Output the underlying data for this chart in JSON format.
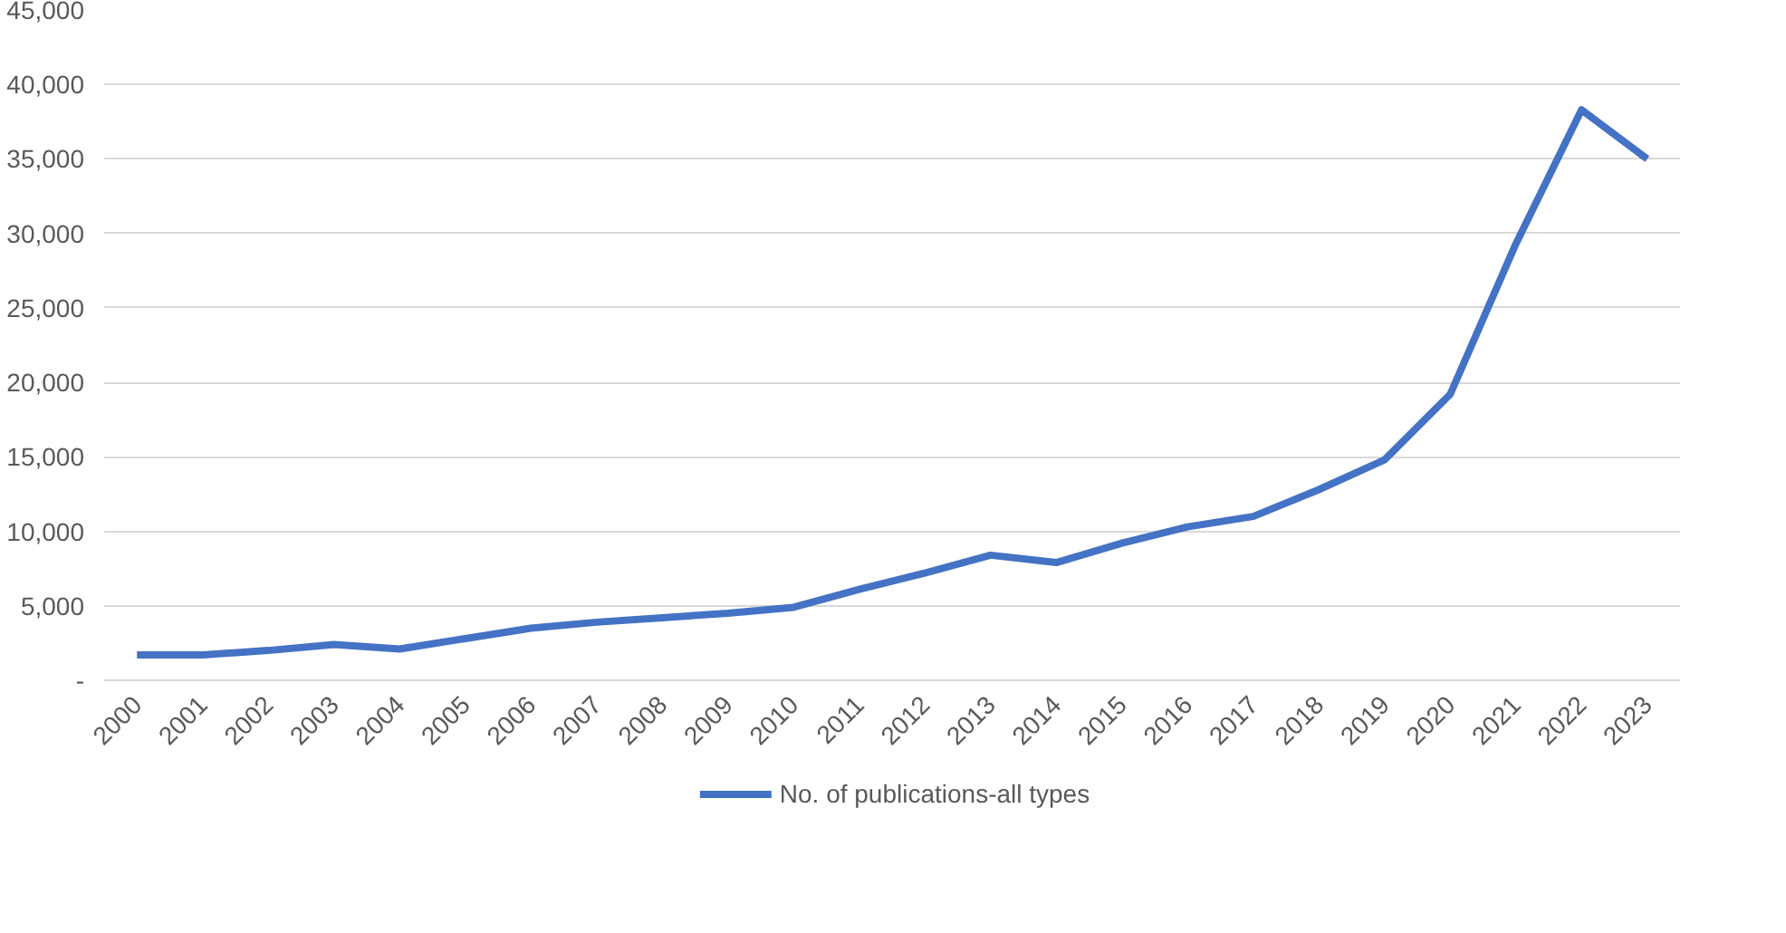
{
  "chart_data": {
    "type": "line",
    "categories": [
      "2000",
      "2001",
      "2002",
      "2003",
      "2004",
      "2005",
      "2006",
      "2007",
      "2008",
      "2009",
      "2010",
      "2011",
      "2012",
      "2013",
      "2014",
      "2015",
      "2016",
      "2017",
      "2018",
      "2019",
      "2020",
      "2021",
      "2022",
      "2023"
    ],
    "series": [
      {
        "name": "No. of publications-all types",
        "color": "#4472c4",
        "values": [
          1700,
          1700,
          2000,
          2400,
          2100,
          2800,
          3500,
          3900,
          4200,
          4500,
          4900,
          6100,
          7200,
          8400,
          7900,
          9200,
          10300,
          11000,
          12800,
          14800,
          19200,
          29300,
          38300,
          35000
        ]
      }
    ],
    "ylim": [
      0,
      45000
    ],
    "yticks": [
      {
        "value": 0,
        "label": "-"
      },
      {
        "value": 5000,
        "label": "5,000"
      },
      {
        "value": 10000,
        "label": "10,000"
      },
      {
        "value": 15000,
        "label": "15,000"
      },
      {
        "value": 20000,
        "label": "20,000"
      },
      {
        "value": 25000,
        "label": "25,000"
      },
      {
        "value": 30000,
        "label": "30,000"
      },
      {
        "value": 35000,
        "label": "35,000"
      },
      {
        "value": 40000,
        "label": "40,000"
      },
      {
        "value": 45000,
        "label": "45,000"
      }
    ],
    "grid": "y",
    "legend": "bottom",
    "marker": "none",
    "line_style": "solid"
  }
}
